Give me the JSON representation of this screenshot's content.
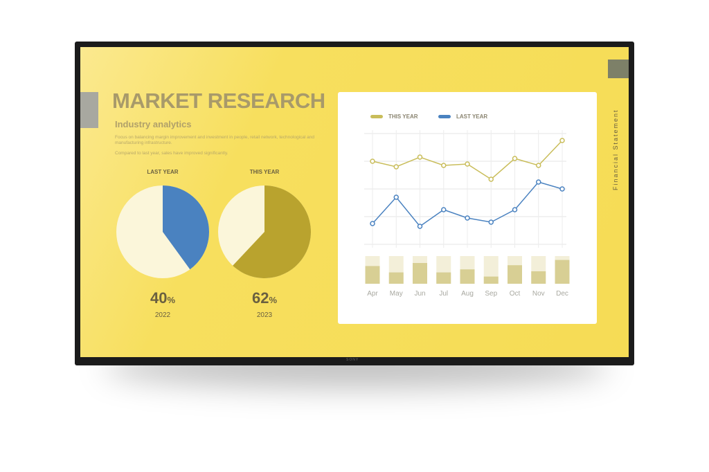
{
  "slide": {
    "title": "MARKET RESEARCH",
    "subtitle": "Industry analytics",
    "description": "Focus on balancing margin improvement and investment in people, retail network, technological and manufacturing infrastructure.",
    "description2": "Compared to last year, sales have improved significantly.",
    "side_label": "Financial Statement",
    "brand": "SONY"
  },
  "colors": {
    "screen": "#f6dc55",
    "this_year": "#c9bd5a",
    "last_year": "#4a82c0",
    "pie_this_year": "#b9a32e",
    "pie_base": "#fbf6da",
    "bar_fill": "#d8cf94",
    "bar_bg": "#f3efd9"
  },
  "chart_data": [
    {
      "type": "pie",
      "label": "LAST YEAR",
      "value_text": "40",
      "unit": "%",
      "year": "2022",
      "values": [
        40,
        60
      ]
    },
    {
      "type": "pie",
      "label": "THIS YEAR",
      "value_text": "62",
      "unit": "%",
      "year": "2023",
      "values": [
        62,
        38
      ]
    },
    {
      "type": "line",
      "categories": [
        "Apr",
        "May",
        "Jun",
        "Jul",
        "Aug",
        "Sep",
        "Oct",
        "Nov",
        "Dec"
      ],
      "series": [
        {
          "name": "THIS YEAR",
          "values": [
            3.0,
            2.8,
            3.15,
            2.85,
            2.9,
            2.35,
            3.1,
            2.85,
            3.75
          ]
        },
        {
          "name": "LAST YEAR",
          "values": [
            0.75,
            1.7,
            0.65,
            1.25,
            0.95,
            0.8,
            1.25,
            2.25,
            2.0
          ]
        }
      ],
      "ylim": [
        0,
        4
      ],
      "grid": true,
      "legend": "top-left"
    },
    {
      "type": "bar",
      "categories": [
        "Apr",
        "May",
        "Jun",
        "Jul",
        "Aug",
        "Sep",
        "Oct",
        "Nov",
        "Dec"
      ],
      "values": [
        0.64,
        0.41,
        0.75,
        0.41,
        0.52,
        0.26,
        0.67,
        0.45,
        0.86
      ],
      "ylim": [
        0,
        1
      ]
    }
  ]
}
